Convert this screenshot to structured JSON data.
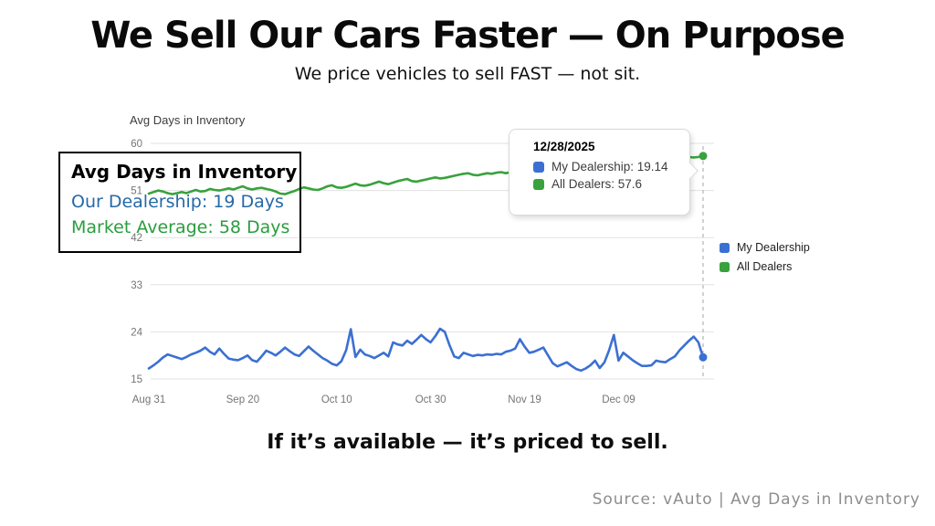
{
  "slide": {
    "title": "We Sell Our Cars Faster — On Purpose",
    "subtitle": "We price vehicles to sell FAST — not sit.",
    "footer": "If it’s available — it’s priced to sell.",
    "source": "Source: vAuto | Avg Days in Inventory"
  },
  "callout": {
    "title": "Avg Days in Inventory",
    "line1": {
      "text": "Our Dealership: 19 Days",
      "color": "#2569a8"
    },
    "line2": {
      "text": "Market Average: 58 Days",
      "color": "#2a9d3e"
    }
  },
  "tooltip": {
    "date": "12/28/2025",
    "rows": [
      {
        "text": "My Dealership: 19.14",
        "color": "#3b70d2"
      },
      {
        "text": "All Dealers: 57.6",
        "color": "#38a23c"
      }
    ]
  },
  "legend": {
    "items": [
      {
        "label": "My Dealership",
        "color": "#3b70d2"
      },
      {
        "label": "All Dealers",
        "color": "#38a23c"
      }
    ]
  },
  "chart_data": {
    "type": "line",
    "title": "Avg Days in Inventory",
    "xlabel": "",
    "ylabel": "",
    "grid": true,
    "legend_position": "right",
    "ylim": [
      15,
      60
    ],
    "y_ticks": [
      60,
      51,
      42,
      33,
      24,
      15
    ],
    "x_tick_labels": [
      "Aug 31",
      "Sep 20",
      "Oct 10",
      "Oct 30",
      "Nov 19",
      "Dec 09"
    ],
    "x_tick_indices": [
      0,
      20,
      40,
      60,
      80,
      100
    ],
    "crosshair_index": 118,
    "crosshair_date": "12/28/2025",
    "series": [
      {
        "name": "My Dealership",
        "color": "#3b70d2",
        "values": [
          17.0,
          17.6,
          18.3,
          19.1,
          19.7,
          19.4,
          19.1,
          18.8,
          19.2,
          19.7,
          20.0,
          20.4,
          21.0,
          20.2,
          19.7,
          20.8,
          19.8,
          18.9,
          18.7,
          18.6,
          19.0,
          19.5,
          18.6,
          18.3,
          19.3,
          20.4,
          20.0,
          19.5,
          20.2,
          21.0,
          20.3,
          19.7,
          19.4,
          20.3,
          21.2,
          20.4,
          19.7,
          19.0,
          18.5,
          17.9,
          17.6,
          18.4,
          20.5,
          24.5,
          19.2,
          20.6,
          19.7,
          19.4,
          19.0,
          19.5,
          20.0,
          19.3,
          22.0,
          21.6,
          21.4,
          22.3,
          21.7,
          22.5,
          23.4,
          22.6,
          22.0,
          23.2,
          24.6,
          24.0,
          21.5,
          19.3,
          19.0,
          20.0,
          19.7,
          19.4,
          19.6,
          19.5,
          19.7,
          19.6,
          19.8,
          19.7,
          20.2,
          20.4,
          20.8,
          22.6,
          21.2,
          20.0,
          20.2,
          20.6,
          21.0,
          19.5,
          18.0,
          17.4,
          17.8,
          18.2,
          17.5,
          16.9,
          16.6,
          17.0,
          17.6,
          18.5,
          17.1,
          18.2,
          20.5,
          23.4,
          18.5,
          20.0,
          19.3,
          18.6,
          18.0,
          17.5,
          17.5,
          17.6,
          18.5,
          18.3,
          18.2,
          18.8,
          19.3,
          20.5,
          21.4,
          22.3,
          23.1,
          22.0,
          19.14
        ]
      },
      {
        "name": "All Dealers",
        "color": "#38a23c",
        "values": [
          50.4,
          50.7,
          51.0,
          50.8,
          50.5,
          50.3,
          50.5,
          50.7,
          50.5,
          50.8,
          51.1,
          50.8,
          50.9,
          51.3,
          51.1,
          51.0,
          51.2,
          51.4,
          51.2,
          51.5,
          51.8,
          51.4,
          51.2,
          51.4,
          51.5,
          51.3,
          51.1,
          50.8,
          50.4,
          50.3,
          50.6,
          50.9,
          51.3,
          51.6,
          51.4,
          51.2,
          51.1,
          51.4,
          51.8,
          52.0,
          51.6,
          51.5,
          51.7,
          52.0,
          52.3,
          52.0,
          51.9,
          52.1,
          52.4,
          52.7,
          52.4,
          52.2,
          52.5,
          52.8,
          53.0,
          53.2,
          52.8,
          52.7,
          52.9,
          53.1,
          53.3,
          53.5,
          53.3,
          53.4,
          53.6,
          53.8,
          54.0,
          54.2,
          54.3,
          54.0,
          53.9,
          54.1,
          54.3,
          54.2,
          54.4,
          54.5,
          54.3,
          54.5,
          54.6,
          54.8,
          54.7,
          54.9,
          55.0,
          55.2,
          55.1,
          55.3,
          55.4,
          55.5,
          55.4,
          55.6,
          55.8,
          55.7,
          55.9,
          56.0,
          56.1,
          56.0,
          56.2,
          56.3,
          56.2,
          56.4,
          56.5,
          56.4,
          56.6,
          56.7,
          56.6,
          56.8,
          56.9,
          56.8,
          57.0,
          57.1,
          57.0,
          57.2,
          57.1,
          57.3,
          57.2,
          57.4,
          57.3,
          57.4,
          57.6
        ]
      }
    ]
  }
}
